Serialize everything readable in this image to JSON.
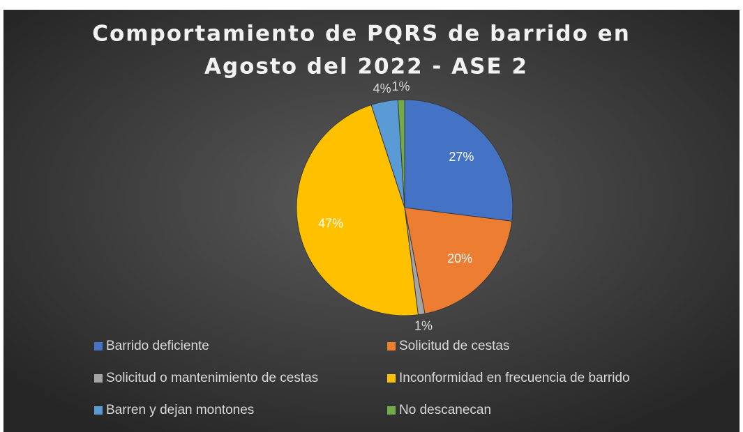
{
  "chart_data": {
    "type": "pie",
    "title": [
      "Comportamiento de PQRS de barrido en",
      "Agosto del 2022 - ASE 2"
    ],
    "categories": [
      "Barrido deficiente",
      "Solicitud de cestas",
      "Solicitud o mantenimiento de cestas",
      "Inconformidad en frecuencia de barrido",
      "Barren y dejan montones",
      "No descanecan"
    ],
    "values": [
      27,
      20,
      1,
      47,
      4,
      1
    ],
    "value_labels": [
      "27%",
      "20%",
      "1%",
      "47%",
      "4%",
      "1%"
    ],
    "colors": [
      "#4472c4",
      "#ed7d31",
      "#a5a5a5",
      "#ffc000",
      "#5b9bd5",
      "#70ad47"
    ],
    "legend": "bottom"
  }
}
